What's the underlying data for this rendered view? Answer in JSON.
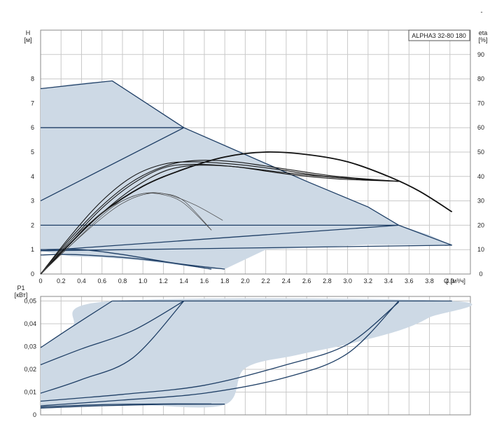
{
  "chart_data": [
    {
      "type": "line",
      "title": "ALPHA3 32-80 180",
      "xlabel": "Q [м³/ч]",
      "ylabel": "H [м]",
      "y2label": "eta [%]",
      "xlim": [
        0,
        4.2
      ],
      "ylim": [
        0,
        10
      ],
      "y2lim": [
        0,
        100
      ],
      "grid": true,
      "x_ticks": [
        "0",
        "0.2",
        "0.4",
        "0.6",
        "0.8",
        "1.0",
        "1.2",
        "1.4",
        "1.6",
        "1.8",
        "2.0",
        "2.2",
        "2.4",
        "2.6",
        "2.8",
        "3.0",
        "3.2",
        "3.4",
        "3.6",
        "3.8",
        "4.0"
      ],
      "y_ticks": [
        "0",
        "1",
        "2",
        "3",
        "4",
        "5",
        "6",
        "7",
        "8"
      ],
      "y2_ticks": [
        "0",
        "10",
        "20",
        "30",
        "40",
        "50",
        "60",
        "70",
        "80",
        "90"
      ],
      "series": [
        {
          "role": "envelope",
          "points": [
            [
              0,
              7.6
            ],
            [
              0.3,
              7.78
            ],
            [
              0.5,
              7.87
            ],
            [
              0.7,
              7.92
            ],
            [
              1.4,
              6.0
            ],
            [
              2.0,
              4.9
            ],
            [
              2.6,
              3.8
            ],
            [
              3.2,
              2.75
            ],
            [
              3.5,
              2.0
            ],
            [
              3.8,
              1.6
            ],
            [
              4.02,
              1.18
            ],
            [
              3.2,
              1.2
            ],
            [
              2.2,
              1.0
            ],
            [
              1.8,
              0.2
            ],
            [
              1.67,
              0.2
            ],
            [
              1.0,
              0.55
            ],
            [
              0.6,
              0.68
            ],
            [
              0.3,
              0.72
            ],
            [
              0,
              0.95
            ]
          ]
        },
        {
          "role": "constant_pressure",
          "points": [
            [
              0,
              6.0
            ],
            [
              1.4,
              6.0
            ]
          ]
        },
        {
          "role": "constant_pressure",
          "points": [
            [
              0,
              2.0
            ],
            [
              3.5,
              2.0
            ]
          ]
        },
        {
          "role": "proportional_pressure",
          "points": [
            [
              0,
              3.0
            ],
            [
              1.4,
              6.0
            ]
          ]
        },
        {
          "role": "proportional_pressure",
          "points": [
            [
              0,
              0.95
            ],
            [
              3.5,
              2.0
            ]
          ]
        },
        {
          "role": "proportional_pressure",
          "points": [
            [
              0,
              0.95
            ],
            [
              4.02,
              1.18
            ]
          ]
        },
        {
          "role": "max_curve",
          "points": [
            [
              0,
              7.6
            ],
            [
              0.7,
              7.92
            ],
            [
              1.4,
              6.0
            ],
            [
              2.0,
              4.9
            ],
            [
              2.6,
              3.8
            ],
            [
              3.2,
              2.75
            ],
            [
              3.5,
              2.0
            ],
            [
              4.02,
              1.18
            ]
          ]
        },
        {
          "role": "low_curve",
          "points": [
            [
              0,
              0.78
            ],
            [
              0.3,
              0.8
            ],
            [
              0.8,
              0.68
            ],
            [
              1.2,
              0.5
            ],
            [
              1.67,
              0.2
            ]
          ]
        },
        {
          "role": "low_curve",
          "points": [
            [
              0,
              1.0
            ],
            [
              0.4,
              1.0
            ],
            [
              0.8,
              0.8
            ],
            [
              1.3,
              0.45
            ],
            [
              1.8,
              0.2
            ]
          ]
        },
        {
          "role": "eta",
          "points": [
            [
              0,
              0
            ],
            [
              0.3,
              13
            ],
            [
              0.6,
              25
            ],
            [
              1.0,
              36
            ],
            [
              1.4,
              43
            ],
            [
              1.8,
              48
            ],
            [
              2.2,
              50
            ],
            [
              2.6,
              49
            ],
            [
              3.0,
              46
            ],
            [
              3.4,
              40
            ],
            [
              3.7,
              34
            ],
            [
              4.02,
              25.5
            ]
          ]
        },
        {
          "role": "eta",
          "points": [
            [
              0,
              0
            ],
            [
              0.3,
              16
            ],
            [
              0.6,
              30
            ],
            [
              0.9,
              40
            ],
            [
              1.2,
              45
            ],
            [
              1.5,
              46
            ],
            [
              1.9,
              45
            ],
            [
              2.3,
              43
            ],
            [
              2.8,
              40
            ],
            [
              3.5,
              38
            ]
          ]
        },
        {
          "role": "eta",
          "points": [
            [
              0,
              0
            ],
            [
              0.3,
              15
            ],
            [
              0.6,
              28
            ],
            [
              0.9,
              38
            ],
            [
              1.2,
              44
            ],
            [
              1.5,
              46.5
            ],
            [
              1.9,
              46
            ],
            [
              2.4,
              43
            ],
            [
              2.9,
              40
            ],
            [
              3.5,
              38
            ]
          ]
        },
        {
          "role": "eta",
          "points": [
            [
              0,
              0
            ],
            [
              0.3,
              14
            ],
            [
              0.6,
              27
            ],
            [
              0.9,
              37
            ],
            [
              1.2,
              43.5
            ],
            [
              1.5,
              45
            ],
            [
              1.9,
              44
            ],
            [
              2.4,
              41
            ],
            [
              2.9,
              39
            ],
            [
              3.5,
              38
            ]
          ]
        },
        {
          "role": "eta",
          "points": [
            [
              0,
              0
            ],
            [
              0.3,
              13
            ],
            [
              0.6,
              25
            ],
            [
              0.9,
              35
            ],
            [
              1.2,
              42
            ],
            [
              1.5,
              44.5
            ],
            [
              1.9,
              44
            ],
            [
              2.4,
              41.5
            ],
            [
              2.9,
              39.5
            ],
            [
              3.5,
              38
            ]
          ]
        },
        {
          "role": "eta",
          "points": [
            [
              0,
              0
            ],
            [
              0.3,
              14
            ],
            [
              0.6,
              25
            ],
            [
              0.8,
              30
            ],
            [
              1.0,
              33
            ],
            [
              1.2,
              33
            ],
            [
              1.4,
              30
            ],
            [
              1.67,
              18
            ]
          ]
        },
        {
          "role": "eta",
          "points": [
            [
              0,
              0
            ],
            [
              0.3,
              12
            ],
            [
              0.6,
              23
            ],
            [
              0.8,
              29
            ],
            [
              1.0,
              32.5
            ],
            [
              1.2,
              33
            ],
            [
              1.5,
              28.5
            ],
            [
              1.78,
              22
            ]
          ]
        },
        {
          "role": "eta",
          "points": [
            [
              0,
              0
            ],
            [
              0.3,
              12
            ],
            [
              0.6,
              24
            ],
            [
              0.8,
              30
            ],
            [
              1.0,
              33
            ],
            [
              1.2,
              32.5
            ],
            [
              1.4,
              29
            ],
            [
              1.67,
              18
            ]
          ]
        }
      ]
    },
    {
      "type": "line",
      "xlabel": "",
      "ylabel": "P1 [кВт]",
      "xlim": [
        0,
        4.2
      ],
      "ylim": [
        0,
        0.05
      ],
      "grid": true,
      "y_ticks": [
        "0",
        "0,01",
        "0,02",
        "0,03",
        "0,04",
        "0,05"
      ],
      "series": [
        {
          "role": "envelope",
          "points": [
            [
              0,
              0.0295
            ],
            [
              0.3,
              0.0385
            ],
            [
              0.7,
              0.05
            ],
            [
              4.02,
              0.05
            ],
            [
              3.8,
              0.0428
            ],
            [
              3.5,
              0.037
            ],
            [
              3.0,
              0.031
            ],
            [
              2.5,
              0.0262
            ],
            [
              2.0,
              0.0205
            ],
            [
              1.8,
              0.0045
            ],
            [
              1.0,
              0.0042
            ],
            [
              0.5,
              0.0038
            ],
            [
              0,
              0.0028
            ]
          ]
        },
        {
          "role": "power",
          "points": [
            [
              0,
              0.0295
            ],
            [
              0.3,
              0.0385
            ],
            [
              0.7,
              0.05
            ]
          ]
        },
        {
          "role": "power",
          "points": [
            [
              0.7,
              0.05
            ],
            [
              4.02,
              0.05
            ]
          ]
        },
        {
          "role": "power",
          "points": [
            [
              0,
              0.022
            ],
            [
              0.4,
              0.029
            ],
            [
              0.9,
              0.037
            ],
            [
              1.4,
              0.05
            ]
          ]
        },
        {
          "role": "power",
          "points": [
            [
              0,
              0.0095
            ],
            [
              0.4,
              0.0155
            ],
            [
              0.9,
              0.025
            ],
            [
              1.4,
              0.05
            ]
          ]
        },
        {
          "role": "power",
          "points": [
            [
              0,
              0.006
            ],
            [
              0.8,
              0.009
            ],
            [
              1.6,
              0.013
            ],
            [
              2.4,
              0.022
            ],
            [
              3.0,
              0.031
            ],
            [
              3.5,
              0.0495
            ]
          ]
        },
        {
          "role": "power",
          "points": [
            [
              0,
              0.004
            ],
            [
              0.8,
              0.0065
            ],
            [
              1.6,
              0.0095
            ],
            [
              2.4,
              0.0165
            ],
            [
              3.0,
              0.027
            ],
            [
              3.5,
              0.05
            ]
          ]
        },
        {
          "role": "power",
          "points": [
            [
              0,
              0.0035
            ],
            [
              0.6,
              0.0045
            ],
            [
              1.2,
              0.0048
            ],
            [
              1.67,
              0.0048
            ]
          ]
        },
        {
          "role": "power",
          "points": [
            [
              0,
              0.003
            ],
            [
              0.6,
              0.004
            ],
            [
              1.2,
              0.0046
            ],
            [
              1.8,
              0.0047
            ]
          ]
        }
      ]
    }
  ],
  "decor": {
    "top_right_mark": "-"
  }
}
